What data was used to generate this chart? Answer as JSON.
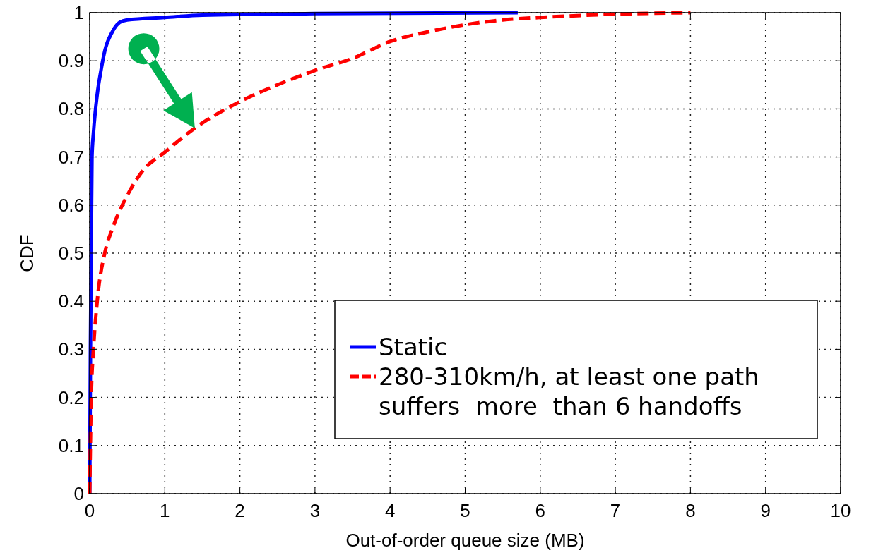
{
  "chart_data": {
    "type": "line",
    "xlabel": "Out-of-order queue size (MB)",
    "ylabel": "CDF",
    "xlim": [
      0,
      10
    ],
    "xticks": [
      0,
      1,
      2,
      3,
      4,
      5,
      6,
      7,
      8,
      9,
      10
    ],
    "ylim": [
      0,
      1
    ],
    "yticks": [
      0,
      0.1,
      0.2,
      0.3,
      0.4,
      0.5,
      0.6,
      0.7,
      0.8,
      0.9,
      1
    ],
    "grid": true,
    "legend": "bottom right",
    "series": [
      {
        "name": "Static",
        "color": "#0000ff",
        "line_style": "solid",
        "x": [
          0,
          0.01,
          0.02,
          0.03,
          0.05,
          0.1,
          0.15,
          0.2,
          0.3,
          0.4,
          0.5,
          1.0,
          1.5,
          3.0,
          5.7
        ],
        "values": [
          0,
          0.3,
          0.5,
          0.7,
          0.75,
          0.83,
          0.88,
          0.92,
          0.96,
          0.98,
          0.985,
          0.99,
          0.995,
          0.998,
          1.0
        ]
      },
      {
        "name": "280-310km/h, at least one path suffers  more  than 6 handoffs",
        "color": "#ff0000",
        "line_style": "dashed",
        "x": [
          0,
          0.02,
          0.05,
          0.1,
          0.2,
          0.3,
          0.5,
          0.7,
          1.0,
          1.4,
          2.0,
          2.5,
          3.0,
          3.5,
          4.0,
          4.5,
          5.0,
          5.5,
          6.0,
          7.0,
          8.0
        ],
        "values": [
          0,
          0.2,
          0.3,
          0.4,
          0.5,
          0.55,
          0.62,
          0.67,
          0.71,
          0.76,
          0.815,
          0.85,
          0.88,
          0.905,
          0.94,
          0.96,
          0.975,
          0.985,
          0.99,
          0.997,
          1.0
        ]
      }
    ]
  }
}
